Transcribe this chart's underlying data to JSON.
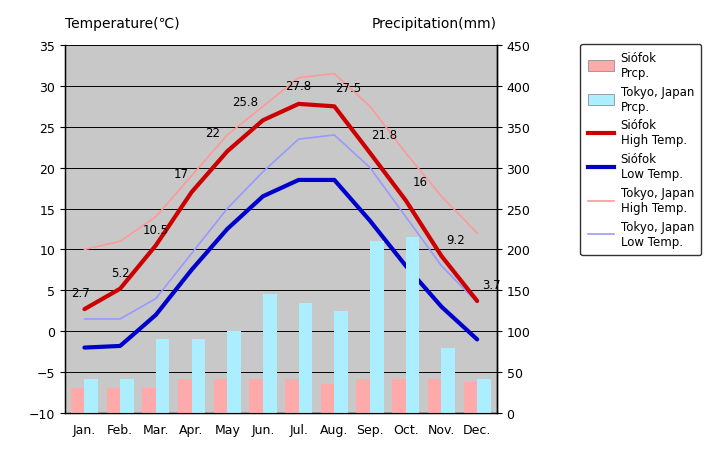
{
  "months": [
    "Jan.",
    "Feb.",
    "Mar.",
    "Apr.",
    "May",
    "Jun.",
    "Jul.",
    "Aug.",
    "Sep.",
    "Oct.",
    "Nov.",
    "Dec."
  ],
  "siofok_high": [
    2.7,
    5.2,
    10.5,
    17.0,
    22.0,
    25.8,
    27.8,
    27.5,
    21.8,
    16.0,
    9.2,
    3.7
  ],
  "siofok_low": [
    -2.0,
    -1.8,
    2.0,
    7.5,
    12.5,
    16.5,
    18.5,
    18.5,
    13.5,
    8.0,
    3.0,
    -1.0
  ],
  "tokyo_high": [
    10.0,
    11.0,
    14.0,
    19.0,
    24.0,
    27.5,
    31.0,
    31.5,
    27.5,
    21.8,
    16.5,
    12.0
  ],
  "tokyo_low": [
    1.5,
    1.5,
    4.0,
    9.5,
    15.0,
    19.5,
    23.5,
    24.0,
    20.0,
    14.0,
    8.0,
    3.5
  ],
  "siofok_precip_mm": [
    30,
    30,
    30,
    42,
    42,
    42,
    42,
    36,
    42,
    42,
    42,
    38
  ],
  "tokyo_precip_mm": [
    42,
    42,
    90,
    90,
    100,
    145,
    135,
    125,
    210,
    215,
    80,
    42
  ],
  "temp_ylim": [
    -10,
    35
  ],
  "precip_ylim": [
    0,
    450
  ],
  "plot_bg_color": "#c8c8c8",
  "siofok_high_color": "#cc0000",
  "siofok_low_color": "#0000cc",
  "tokyo_high_color": "#ff9999",
  "tokyo_low_color": "#9999ff",
  "siofok_precip_color": "#ffaaaa",
  "tokyo_precip_color": "#aaeeff",
  "title_left": "Temperature(℃)",
  "title_right": "Precipitation(mm)",
  "yticks_temp": [
    -10,
    -5,
    0,
    5,
    10,
    15,
    20,
    25,
    30,
    35
  ],
  "yticks_precip": [
    0,
    50,
    100,
    150,
    200,
    250,
    300,
    350,
    400,
    450
  ]
}
